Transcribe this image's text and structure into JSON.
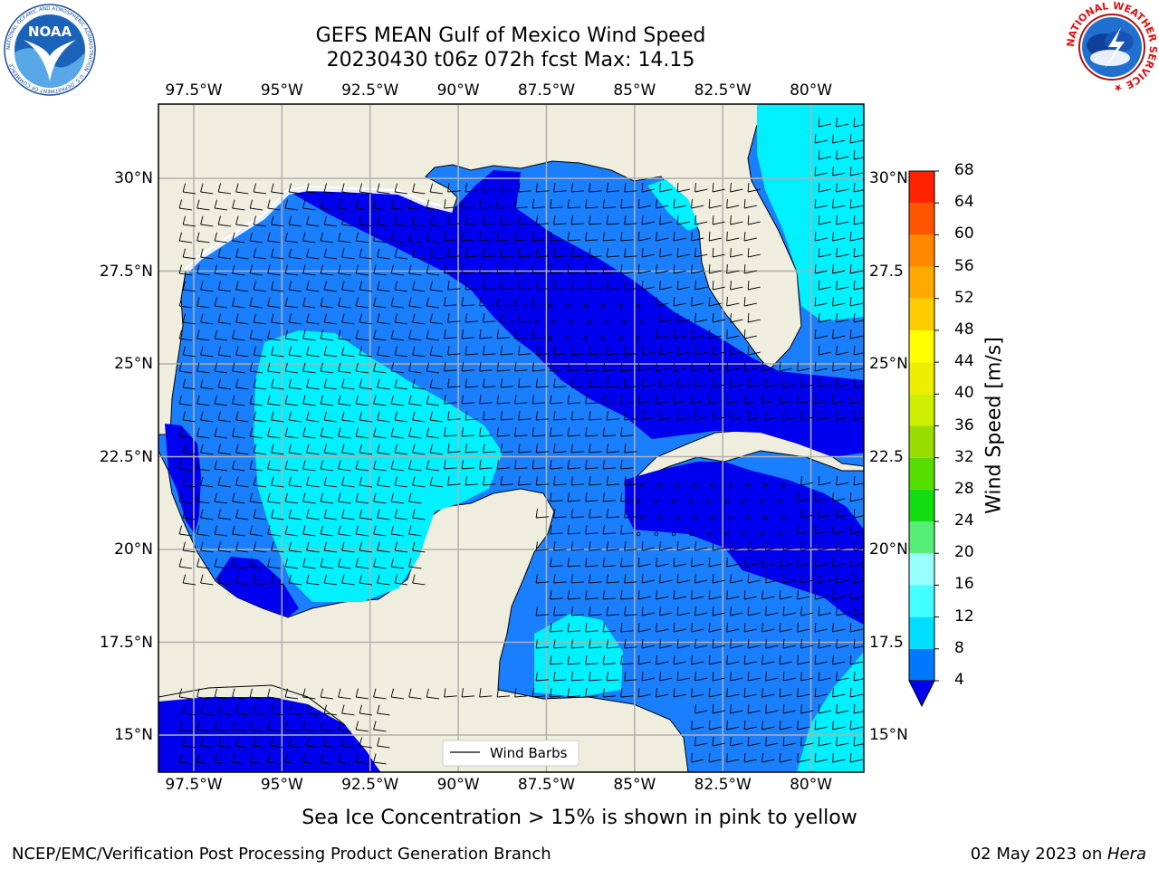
{
  "title": {
    "line1": "GEFS MEAN Gulf of Mexico Wind Speed",
    "line2": "20230430 t06z 072h fcst   Max: 14.15"
  },
  "map": {
    "lon_min": -98.5,
    "lon_max": -78.5,
    "lat_min": 14.0,
    "lat_max": 32.0,
    "lon_ticks": [
      -97.5,
      -95,
      -92.5,
      -90,
      -87.5,
      -85,
      -82.5,
      -80
    ],
    "lon_labels": [
      "97.5°W",
      "95°W",
      "92.5°W",
      "90°W",
      "87.5°W",
      "85°W",
      "82.5°W",
      "80°W"
    ],
    "lat_ticks": [
      30,
      27.5,
      25,
      22.5,
      20,
      17.5,
      15
    ],
    "lat_labels_left": [
      "30°N",
      "27.5°N",
      "25°N",
      "22.5°N",
      "20°N",
      "17.5°N",
      "15°N"
    ],
    "lat_labels_right": [
      "30°N",
      "27.5",
      "25°N",
      "22.5",
      "20°N",
      "17.5",
      "15°N"
    ],
    "land_color": "#efedde",
    "grid_color": "#b0b0b0",
    "legend_label": "Wind Barbs"
  },
  "colorbar": {
    "title": "Wind Speed [m/s]",
    "ticks": [
      "68",
      "64",
      "60",
      "56",
      "52",
      "48",
      "44",
      "40",
      "36",
      "32",
      "28",
      "24",
      "20",
      "16",
      "12",
      "8",
      "4"
    ],
    "colors": [
      "#0000ee",
      "#0077ff",
      "#00ddff",
      "#44ffff",
      "#99ffff",
      "#55ee77",
      "#11dd11",
      "#55dd00",
      "#99dd00",
      "#ccee00",
      "#eeee00",
      "#ffff00",
      "#ffcc00",
      "#ffaa00",
      "#ff8800",
      "#ff5500",
      "#ff2200",
      "#ff0000"
    ],
    "under_color": "#0000ee"
  },
  "note": "Sea Ice Concentration > 15% is shown in pink to yellow",
  "footer": {
    "left": "NCEP/EMC/Verification Post Processing Product Generation Branch",
    "right_date": "02 May 2023 on ",
    "right_host": "Hera"
  },
  "logos": {
    "noaa_text": "NOAA",
    "noaa_ring": "NATIONAL OCEANIC AND ATMOSPHERIC ADMINISTRATION · U.S. DEPARTMENT OF COMMERCE ·",
    "nws_ring": "NATIONAL WEATHER SERVICE ★"
  }
}
